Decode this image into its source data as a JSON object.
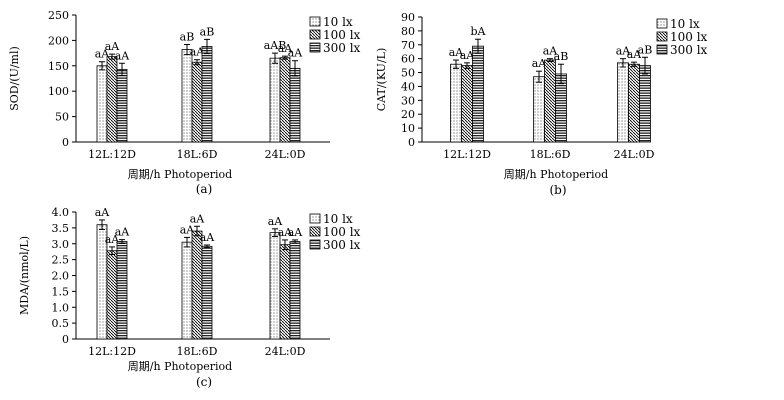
{
  "chart_data": [
    {
      "type": "bar",
      "panel_label": "(a)",
      "ylabel": "SOD/(U/ml)",
      "xlabel": "周期/h Photoperiod",
      "ylim": [
        0,
        250
      ],
      "yticks": [
        "0",
        "50",
        "100",
        "150",
        "200",
        "250"
      ],
      "categories": [
        "12L:12D",
        "18L:6D",
        "24L:0D"
      ],
      "series": [
        {
          "name": "10 lx",
          "values": [
            150,
            182,
            165
          ],
          "errors": [
            8,
            10,
            10
          ],
          "labels": [
            "aA",
            "aB",
            "aAB"
          ]
        },
        {
          "name": "100 lx",
          "values": [
            168,
            157,
            166
          ],
          "errors": [
            5,
            5,
            3
          ],
          "labels": [
            "aA",
            "aA",
            "aA"
          ]
        },
        {
          "name": "300 lx",
          "values": [
            143,
            188,
            145
          ],
          "errors": [
            12,
            14,
            15
          ],
          "labels": [
            "aA",
            "aB",
            "aA"
          ]
        }
      ]
    },
    {
      "type": "bar",
      "panel_label": "(b)",
      "ylabel": "CAT/(KU/L)",
      "xlabel": "周期/h Photoperiod",
      "ylim": [
        0,
        90
      ],
      "yticks": [
        "0",
        "10",
        "20",
        "30",
        "40",
        "50",
        "60",
        "70",
        "80",
        "90"
      ],
      "categories": [
        "12L:12D",
        "18L:6D",
        "24L:0D"
      ],
      "series": [
        {
          "name": "10 lx",
          "values": [
            56,
            47,
            57
          ],
          "errors": [
            3,
            4,
            3
          ],
          "labels": [
            "aA",
            "aA",
            "aA"
          ]
        },
        {
          "name": "100 lx",
          "values": [
            55,
            59,
            56
          ],
          "errors": [
            2,
            1,
            1.5
          ],
          "labels": [
            "aA",
            "aA",
            "aA"
          ]
        },
        {
          "name": "300 lx",
          "values": [
            69,
            49,
            55
          ],
          "errors": [
            5,
            7,
            6
          ],
          "labels": [
            "bA",
            "aB",
            "aB"
          ]
        }
      ]
    },
    {
      "type": "bar",
      "panel_label": "(c)",
      "ylabel": "MDA/(nmol/L)",
      "xlabel": "周期/h Photoperiod",
      "ylim": [
        0,
        4.0
      ],
      "yticks": [
        "0",
        "0.5",
        "1.0",
        "1.5",
        "2.0",
        "2.5",
        "3.0",
        "3.5",
        "4.0"
      ],
      "categories": [
        "12L:12D",
        "18L:6D",
        "24L:0D"
      ],
      "series": [
        {
          "name": "10 lx",
          "values": [
            3.6,
            3.05,
            3.35
          ],
          "errors": [
            0.15,
            0.15,
            0.12
          ],
          "labels": [
            "aA",
            "aA",
            "aA"
          ]
        },
        {
          "name": "100 lx",
          "values": [
            2.78,
            3.4,
            2.97
          ],
          "errors": [
            0.12,
            0.15,
            0.15
          ],
          "labels": [
            "aA",
            "aA",
            "aA"
          ]
        },
        {
          "name": "300 lx",
          "values": [
            3.07,
            2.92,
            3.07
          ],
          "errors": [
            0.06,
            0.04,
            0.05
          ],
          "labels": [
            "aA",
            "aA",
            "aA"
          ]
        }
      ]
    }
  ]
}
